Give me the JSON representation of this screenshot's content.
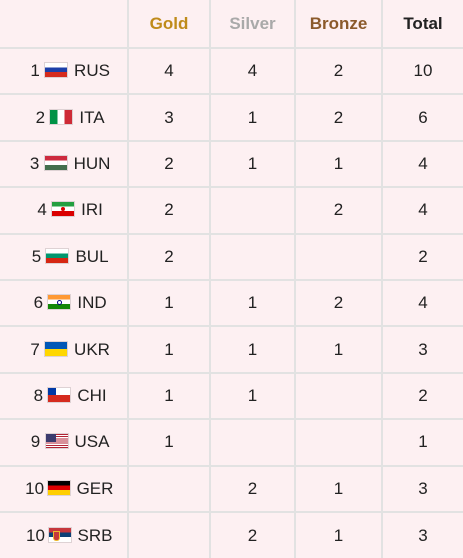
{
  "header": {
    "team": "",
    "gold": "Gold",
    "silver": "Silver",
    "bronze": "Bronze",
    "total": "Total"
  },
  "colors": {
    "gold": "#bf8b1a",
    "silver": "#a9a9a9",
    "bronze": "#8b5a2b",
    "background": "#fdf0f2"
  },
  "rows": [
    {
      "rank": "1",
      "flag": "russia-flag-icon",
      "code": "RUS",
      "gold": "4",
      "silver": "4",
      "bronze": "2",
      "total": "10"
    },
    {
      "rank": "2",
      "flag": "italy-flag-icon",
      "code": "ITA",
      "gold": "3",
      "silver": "1",
      "bronze": "2",
      "total": "6"
    },
    {
      "rank": "3",
      "flag": "hungary-flag-icon",
      "code": "HUN",
      "gold": "2",
      "silver": "1",
      "bronze": "1",
      "total": "4"
    },
    {
      "rank": "4",
      "flag": "iran-flag-icon",
      "code": "IRI",
      "gold": "2",
      "silver": "",
      "bronze": "2",
      "total": "4"
    },
    {
      "rank": "5",
      "flag": "bulgaria-flag-icon",
      "code": "BUL",
      "gold": "2",
      "silver": "",
      "bronze": "",
      "total": "2"
    },
    {
      "rank": "6",
      "flag": "india-flag-icon",
      "code": "IND",
      "gold": "1",
      "silver": "1",
      "bronze": "2",
      "total": "4"
    },
    {
      "rank": "7",
      "flag": "ukraine-flag-icon",
      "code": "UKR",
      "gold": "1",
      "silver": "1",
      "bronze": "1",
      "total": "3"
    },
    {
      "rank": "8",
      "flag": "chile-flag-icon",
      "code": "CHI",
      "gold": "1",
      "silver": "1",
      "bronze": "",
      "total": "2"
    },
    {
      "rank": "9",
      "flag": "usa-flag-icon",
      "code": "USA",
      "gold": "1",
      "silver": "",
      "bronze": "",
      "total": "1"
    },
    {
      "rank": "10",
      "flag": "germany-flag-icon",
      "code": "GER",
      "gold": "",
      "silver": "2",
      "bronze": "1",
      "total": "3"
    },
    {
      "rank": "10",
      "flag": "serbia-flag-icon",
      "code": "SRB",
      "gold": "",
      "silver": "2",
      "bronze": "1",
      "total": "3"
    }
  ]
}
